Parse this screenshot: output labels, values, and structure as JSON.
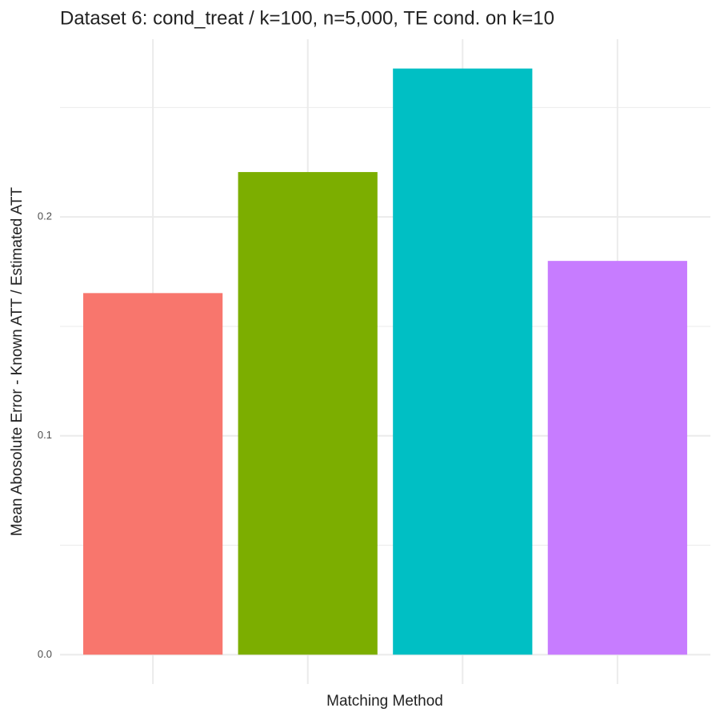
{
  "chart_data": {
    "type": "bar",
    "title": "Dataset 6: cond_treat / k=100, n=5,000, TE cond. on k=10",
    "x_label": "Matching Method",
    "y_label": "Mean Abosolute Error - Known ATT / Estimated ATT",
    "categories": [
      null,
      null,
      null,
      null
    ],
    "values": [
      0.1652,
      0.2205,
      0.2678,
      0.1799
    ],
    "colors": [
      "#f8766d",
      "#7cae00",
      "#00bfc4",
      "#c77cff"
    ],
    "ylim": [
      -0.0134,
      0.2812
    ],
    "yticks": [
      {
        "value": 0,
        "label": "0.0"
      },
      0.1,
      0.2
    ],
    "yminorticks": [
      0.05,
      0.15,
      0.25
    ],
    "grid": true
  }
}
